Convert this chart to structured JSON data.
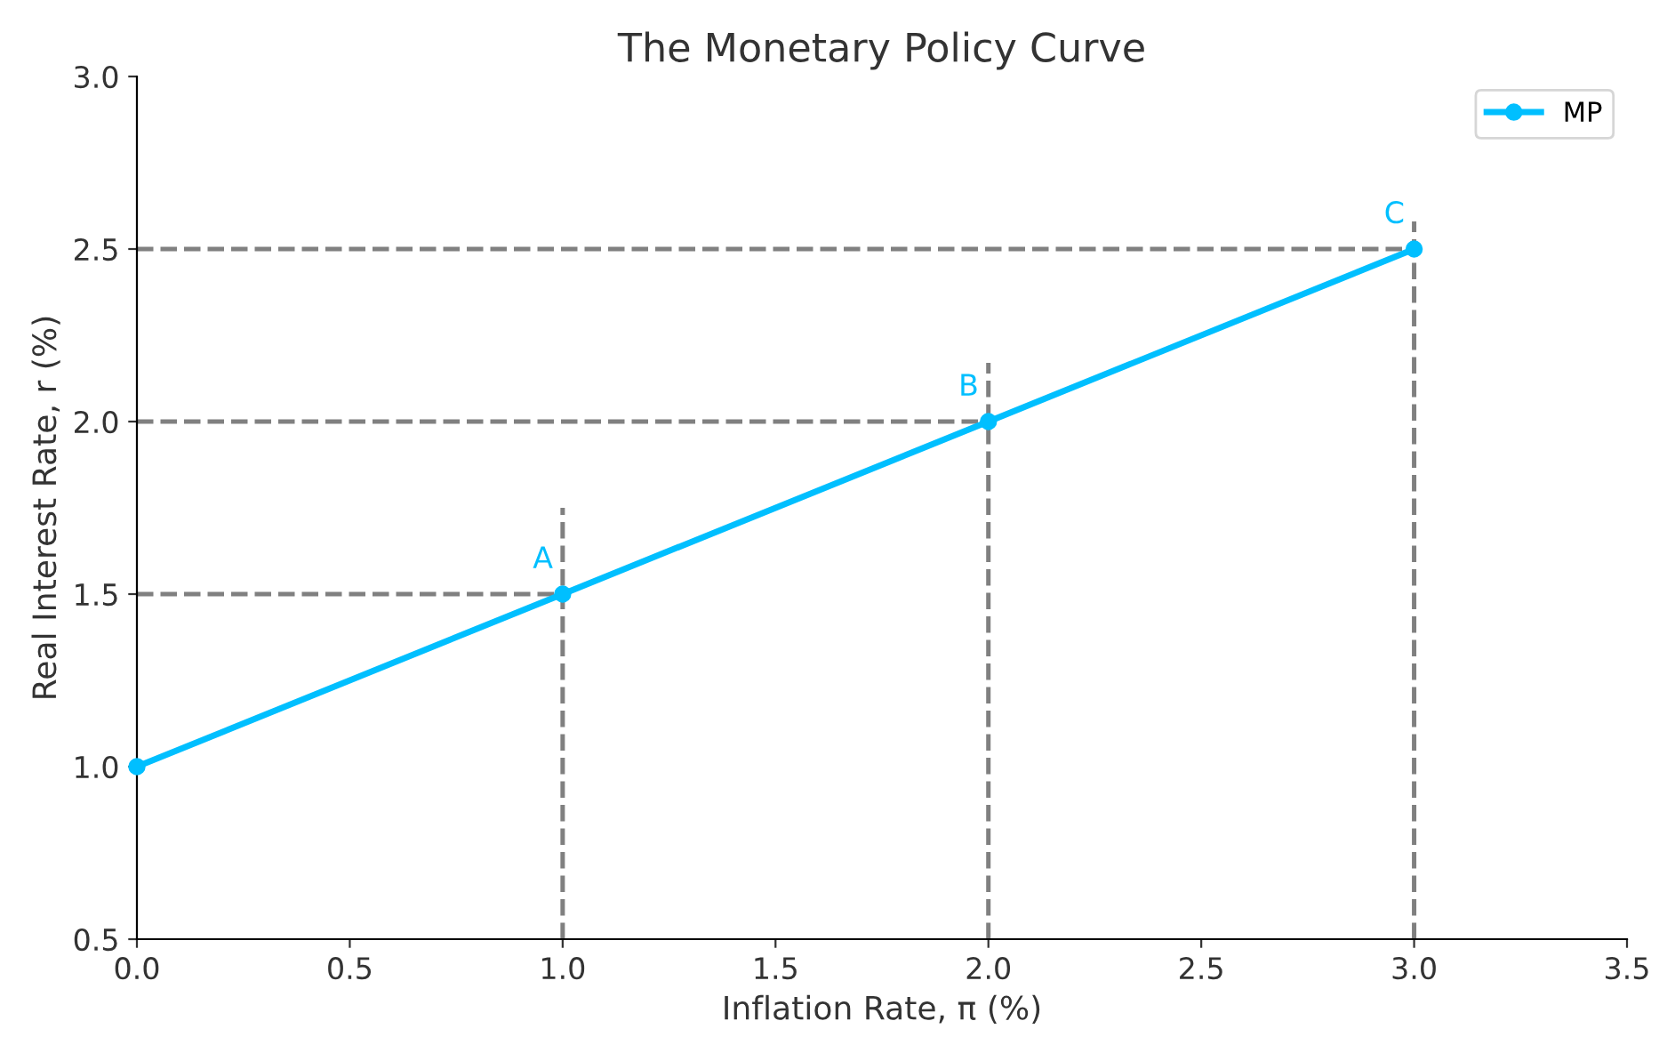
{
  "chart_data": {
    "type": "line",
    "title": "The Monetary Policy Curve",
    "xlabel": "Inflation Rate, π (%)",
    "ylabel": "Real Interest Rate, r (%)",
    "xlim": [
      0,
      3.5
    ],
    "xticks": [
      {
        "value": 0,
        "label": "0.0"
      },
      {
        "value": 0.5,
        "label": "0.5"
      },
      {
        "value": 1,
        "label": "1.0"
      },
      {
        "value": 1.5,
        "label": "1.5"
      },
      {
        "value": 2,
        "label": "2.0"
      },
      {
        "value": 2.5,
        "label": "2.5"
      },
      {
        "value": 3,
        "label": "3.0"
      },
      {
        "value": 3.5,
        "label": "3.5"
      }
    ],
    "ylim": [
      0.5,
      3
    ],
    "yticks": [
      {
        "value": 0.5,
        "label": "0.5"
      },
      {
        "value": 1,
        "label": "1.0"
      },
      {
        "value": 1.5,
        "label": "1.5"
      },
      {
        "value": 2,
        "label": "2.0"
      },
      {
        "value": 2.5,
        "label": "2.5"
      },
      {
        "value": 3,
        "label": "3.0"
      }
    ],
    "grid": false,
    "legend": "top right",
    "series": [
      {
        "name": "MP",
        "color": "#00bfff",
        "x": [
          0,
          1,
          2,
          3
        ],
        "values": [
          1,
          1.5,
          2,
          2.5
        ],
        "marker": "circle",
        "line_style": "solid"
      },
      {
        "color": "#808080",
        "x": [
          0,
          1
        ],
        "values": [
          1.5,
          1.5
        ],
        "marker": "none",
        "line_style": "dashed"
      },
      {
        "color": "#808080",
        "x": [
          0,
          2
        ],
        "values": [
          2,
          2
        ],
        "marker": "none",
        "line_style": "dashed"
      },
      {
        "color": "#808080",
        "x": [
          0,
          3
        ],
        "values": [
          2.5,
          2.5
        ],
        "marker": "none",
        "line_style": "dashed"
      },
      {
        "color": "#808080",
        "x": [
          1,
          1
        ],
        "values": [
          0.5,
          1.75
        ],
        "marker": "none",
        "line_style": "dashed"
      },
      {
        "color": "#808080",
        "x": [
          2,
          2
        ],
        "values": [
          0.5,
          2.17
        ],
        "marker": "none",
        "line_style": "dashed"
      },
      {
        "color": "#808080",
        "x": [
          3,
          3
        ],
        "values": [
          0.5,
          2.58
        ],
        "marker": "none",
        "line_style": "dashed"
      }
    ],
    "annotations": [
      {
        "text": "A",
        "x": 1,
        "y": 1.5
      },
      {
        "text": "B",
        "x": 2,
        "y": 2
      },
      {
        "text": "C",
        "x": 3,
        "y": 2.5
      }
    ]
  }
}
